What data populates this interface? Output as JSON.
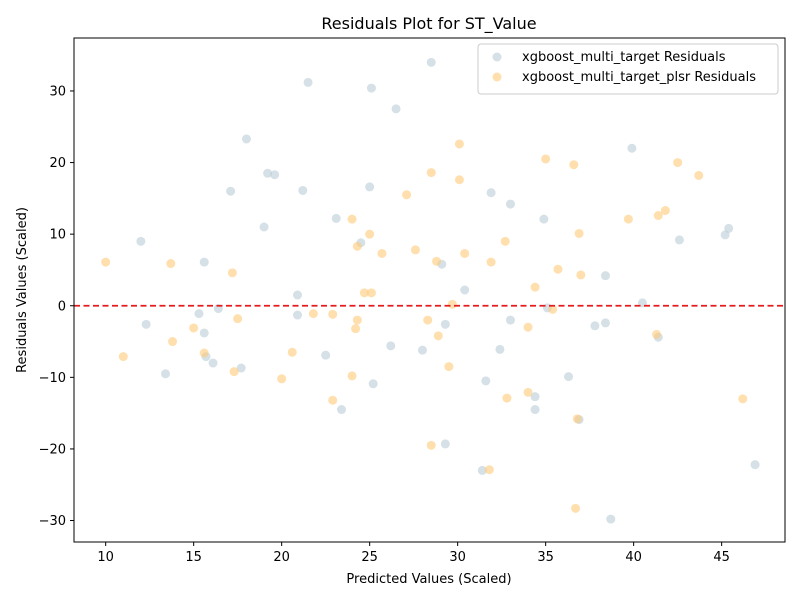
{
  "chart_data": {
    "type": "scatter",
    "title": "Residuals Plot for ST_Value",
    "xlabel": "Predicted Values (Scaled)",
    "ylabel": "Residuals Values (Scaled)",
    "xlim": [
      8.2,
      48.6
    ],
    "ylim": [
      -33.0,
      37.4
    ],
    "xticks": [
      10,
      15,
      20,
      25,
      30,
      35,
      40,
      45
    ],
    "yticks": [
      -30,
      -20,
      -10,
      0,
      10,
      20,
      30
    ],
    "grid": false,
    "legend_position": "top-right",
    "reference_line": {
      "y": 0,
      "color": "#e41a1c",
      "style": "dashed"
    },
    "series": [
      {
        "name": "xgboost_multi_target Residuals",
        "color": "#b9cdd6",
        "points": [
          [
            12.0,
            9.0
          ],
          [
            12.3,
            -2.6
          ],
          [
            13.4,
            -9.5
          ],
          [
            15.3,
            -1.1
          ],
          [
            15.6,
            -3.8
          ],
          [
            15.6,
            6.1
          ],
          [
            15.7,
            -7.1
          ],
          [
            16.1,
            -8.0
          ],
          [
            16.4,
            -0.4
          ],
          [
            17.1,
            16.0
          ],
          [
            17.7,
            -8.7
          ],
          [
            18.0,
            23.3
          ],
          [
            19.0,
            11.0
          ],
          [
            19.2,
            18.5
          ],
          [
            19.6,
            18.3
          ],
          [
            20.9,
            1.5
          ],
          [
            20.9,
            -1.3
          ],
          [
            21.2,
            16.1
          ],
          [
            21.5,
            31.2
          ],
          [
            22.5,
            -6.9
          ],
          [
            23.1,
            12.2
          ],
          [
            23.4,
            -14.5
          ],
          [
            24.5,
            8.8
          ],
          [
            25.0,
            16.6
          ],
          [
            25.1,
            30.4
          ],
          [
            25.2,
            -10.9
          ],
          [
            26.2,
            -5.6
          ],
          [
            26.5,
            27.5
          ],
          [
            28.0,
            -6.2
          ],
          [
            28.5,
            34.0
          ],
          [
            29.1,
            5.8
          ],
          [
            29.3,
            -2.6
          ],
          [
            29.3,
            -19.3
          ],
          [
            30.4,
            2.2
          ],
          [
            31.4,
            -23.0
          ],
          [
            31.6,
            -10.5
          ],
          [
            31.9,
            15.8
          ],
          [
            32.4,
            -6.1
          ],
          [
            33.0,
            14.2
          ],
          [
            33.0,
            -2.0
          ],
          [
            34.4,
            -12.7
          ],
          [
            34.4,
            -14.5
          ],
          [
            34.9,
            12.1
          ],
          [
            35.1,
            -0.3
          ],
          [
            36.3,
            -9.9
          ],
          [
            36.9,
            -15.9
          ],
          [
            37.8,
            -2.8
          ],
          [
            38.4,
            -2.4
          ],
          [
            38.4,
            4.2
          ],
          [
            38.7,
            -29.8
          ],
          [
            39.9,
            22.0
          ],
          [
            40.5,
            0.4
          ],
          [
            41.4,
            -4.4
          ],
          [
            42.6,
            9.2
          ],
          [
            45.2,
            9.9
          ],
          [
            45.4,
            10.8
          ],
          [
            46.9,
            -22.2
          ]
        ]
      },
      {
        "name": "xgboost_multi_target_plsr Residuals",
        "color": "#ffc978",
        "points": [
          [
            10.0,
            6.1
          ],
          [
            11.0,
            -7.1
          ],
          [
            13.7,
            5.9
          ],
          [
            13.8,
            -5.0
          ],
          [
            15.0,
            -3.1
          ],
          [
            15.6,
            -6.6
          ],
          [
            17.2,
            4.6
          ],
          [
            17.3,
            -9.2
          ],
          [
            17.5,
            -1.8
          ],
          [
            20.0,
            -10.2
          ],
          [
            20.6,
            -6.5
          ],
          [
            21.8,
            -1.1
          ],
          [
            22.9,
            -13.2
          ],
          [
            22.9,
            -1.2
          ],
          [
            24.0,
            -9.8
          ],
          [
            24.0,
            12.1
          ],
          [
            24.2,
            -3.2
          ],
          [
            24.3,
            -2.0
          ],
          [
            24.3,
            8.3
          ],
          [
            24.7,
            1.8
          ],
          [
            25.0,
            10.0
          ],
          [
            25.1,
            1.8
          ],
          [
            25.7,
            7.3
          ],
          [
            27.1,
            15.5
          ],
          [
            27.6,
            7.8
          ],
          [
            28.3,
            -2.0
          ],
          [
            28.5,
            18.6
          ],
          [
            28.5,
            -19.5
          ],
          [
            28.8,
            6.2
          ],
          [
            28.9,
            -4.2
          ],
          [
            29.5,
            -8.5
          ],
          [
            29.7,
            0.2
          ],
          [
            30.1,
            22.6
          ],
          [
            30.1,
            17.6
          ],
          [
            30.4,
            7.3
          ],
          [
            31.8,
            -22.9
          ],
          [
            31.9,
            6.1
          ],
          [
            32.7,
            9.0
          ],
          [
            32.8,
            -12.9
          ],
          [
            34.0,
            -12.1
          ],
          [
            34.0,
            -3.0
          ],
          [
            34.4,
            2.6
          ],
          [
            35.0,
            20.5
          ],
          [
            35.4,
            -0.5
          ],
          [
            35.7,
            5.1
          ],
          [
            36.6,
            19.7
          ],
          [
            36.7,
            -28.3
          ],
          [
            36.8,
            -15.8
          ],
          [
            36.9,
            10.1
          ],
          [
            37.0,
            4.3
          ],
          [
            39.7,
            12.1
          ],
          [
            41.3,
            -4.0
          ],
          [
            41.4,
            12.6
          ],
          [
            41.8,
            13.3
          ],
          [
            42.5,
            20.0
          ],
          [
            43.7,
            18.2
          ],
          [
            46.2,
            -13.0
          ]
        ]
      }
    ]
  }
}
